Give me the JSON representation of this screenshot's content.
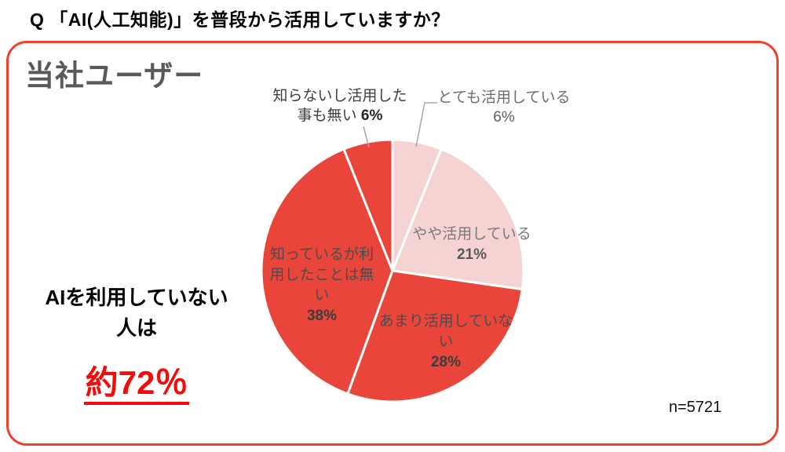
{
  "question": "Q 「AI(人工知能)」を普段から活用していますか？",
  "panel": {
    "heading": "当社ユーザー",
    "sample_size": "n=5721",
    "annotation": {
      "line1": "AIを利用していない",
      "line2": "人は",
      "highlight": "約72％"
    }
  },
  "chart_data": {
    "type": "pie",
    "title": "当社ユーザー",
    "categories": [
      "とても活用している",
      "やや活用している",
      "あまり活用していない",
      "知っているが利用したことは無い",
      "知らないし活用した事も無い"
    ],
    "values": [
      6,
      21,
      28,
      38,
      6
    ],
    "pct_labels": [
      "6%",
      "21%",
      "28%",
      "38%",
      "6%"
    ],
    "unit": "%",
    "colors": [
      "#F5D3D3",
      "#F5D3D3",
      "#E9453A",
      "#E9453A",
      "#E9453A"
    ],
    "start_angle_deg": 0,
    "direction": "clockwise",
    "legend_position": "none",
    "label_style": "category + percent, inside for large slices, outside with leader lines for 6% slices",
    "sample_size": "n=5721",
    "derived_insight": "AIを利用していない人は 約72％ (28 + 38 + 6)"
  },
  "colors": {
    "pie_red": "#E9453A",
    "pie_pink": "#F5D3D3",
    "panel_border_red": "#F2402C",
    "highlight_red": "#F40C0C",
    "heading_gray": "#595959",
    "leader_line_gray": "#A6A6A6"
  }
}
